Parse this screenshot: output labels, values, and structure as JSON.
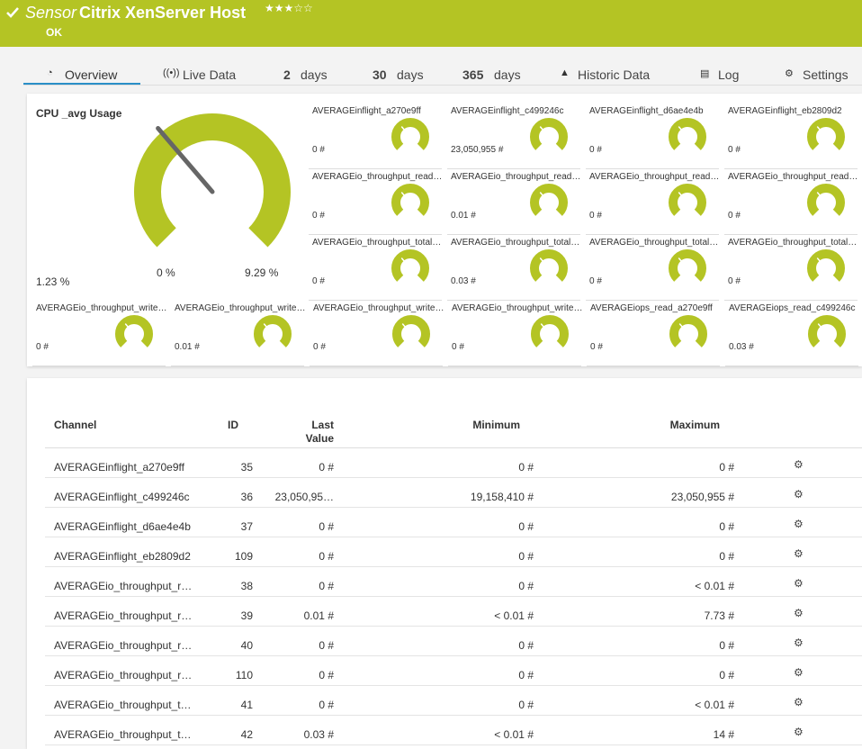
{
  "header": {
    "prefix": "Sensor",
    "title": "Citrix XenServer Host",
    "status": "OK"
  },
  "tabs": [
    {
      "label": "Overview"
    },
    {
      "label": "Live Data"
    },
    {
      "bold": "2",
      "label": "days"
    },
    {
      "bold": "30",
      "label": "days"
    },
    {
      "bold": "365",
      "label": "days"
    },
    {
      "label": "Historic Data"
    },
    {
      "label": "Log"
    },
    {
      "label": "Settings"
    }
  ],
  "main_gauge": {
    "title": "CPU _avg Usage",
    "value": "1.23 %",
    "min": "0 %",
    "max": "9.29 %"
  },
  "gauges": [
    {
      "name": "AVERAGEinflight_a270e9ff",
      "value": "0 #"
    },
    {
      "name": "AVERAGEinflight_c499246c",
      "value": "23,050,955 #"
    },
    {
      "name": "AVERAGEinflight_d6ae4e4b",
      "value": "0 #"
    },
    {
      "name": "AVERAGEinflight_eb2809d2",
      "value": "0 #"
    },
    {
      "name": "AVERAGEio_throughput_read…",
      "value": "0 #"
    },
    {
      "name": "AVERAGEio_throughput_read…",
      "value": "0.01 #"
    },
    {
      "name": "AVERAGEio_throughput_read…",
      "value": "0 #"
    },
    {
      "name": "AVERAGEio_throughput_read…",
      "value": "0 #"
    },
    {
      "name": "AVERAGEio_throughput_total…",
      "value": "0 #"
    },
    {
      "name": "AVERAGEio_throughput_total…",
      "value": "0.03 #"
    },
    {
      "name": "AVERAGEio_throughput_total…",
      "value": "0 #"
    },
    {
      "name": "AVERAGEio_throughput_total…",
      "value": "0 #"
    },
    {
      "name": "AVERAGEio_throughput_write…",
      "value": "0 #"
    },
    {
      "name": "AVERAGEio_throughput_write…",
      "value": "0.01 #"
    },
    {
      "name": "AVERAGEio_throughput_write…",
      "value": "0 #"
    },
    {
      "name": "AVERAGEio_throughput_write…",
      "value": "0 #"
    },
    {
      "name": "AVERAGEiops_read_a270e9ff",
      "value": "0 #"
    },
    {
      "name": "AVERAGEiops_read_c499246c",
      "value": "0.03 #"
    }
  ],
  "table": {
    "columns": [
      "Channel",
      "ID",
      "Last Value",
      "Minimum",
      "Maximum"
    ],
    "rows": [
      [
        "AVERAGEinflight_a270e9ff",
        "35",
        "0 #",
        "0 #",
        "0 #"
      ],
      [
        "AVERAGEinflight_c499246c",
        "36",
        "23,050,95…",
        "19,158,410 #",
        "23,050,955 #"
      ],
      [
        "AVERAGEinflight_d6ae4e4b",
        "37",
        "0 #",
        "0 #",
        "0 #"
      ],
      [
        "AVERAGEinflight_eb2809d2",
        "109",
        "0 #",
        "0 #",
        "0 #"
      ],
      [
        "AVERAGEio_throughput_r…",
        "38",
        "0 #",
        "0 #",
        "< 0.01 #"
      ],
      [
        "AVERAGEio_throughput_r…",
        "39",
        "0.01 #",
        "< 0.01 #",
        "7.73 #"
      ],
      [
        "AVERAGEio_throughput_r…",
        "40",
        "0 #",
        "0 #",
        "0 #"
      ],
      [
        "AVERAGEio_throughput_r…",
        "110",
        "0 #",
        "0 #",
        "0 #"
      ],
      [
        "AVERAGEio_throughput_t…",
        "41",
        "0 #",
        "0 #",
        "< 0.01 #"
      ],
      [
        "AVERAGEio_throughput_t…",
        "42",
        "0.03 #",
        "< 0.01 #",
        "14 #"
      ]
    ]
  }
}
